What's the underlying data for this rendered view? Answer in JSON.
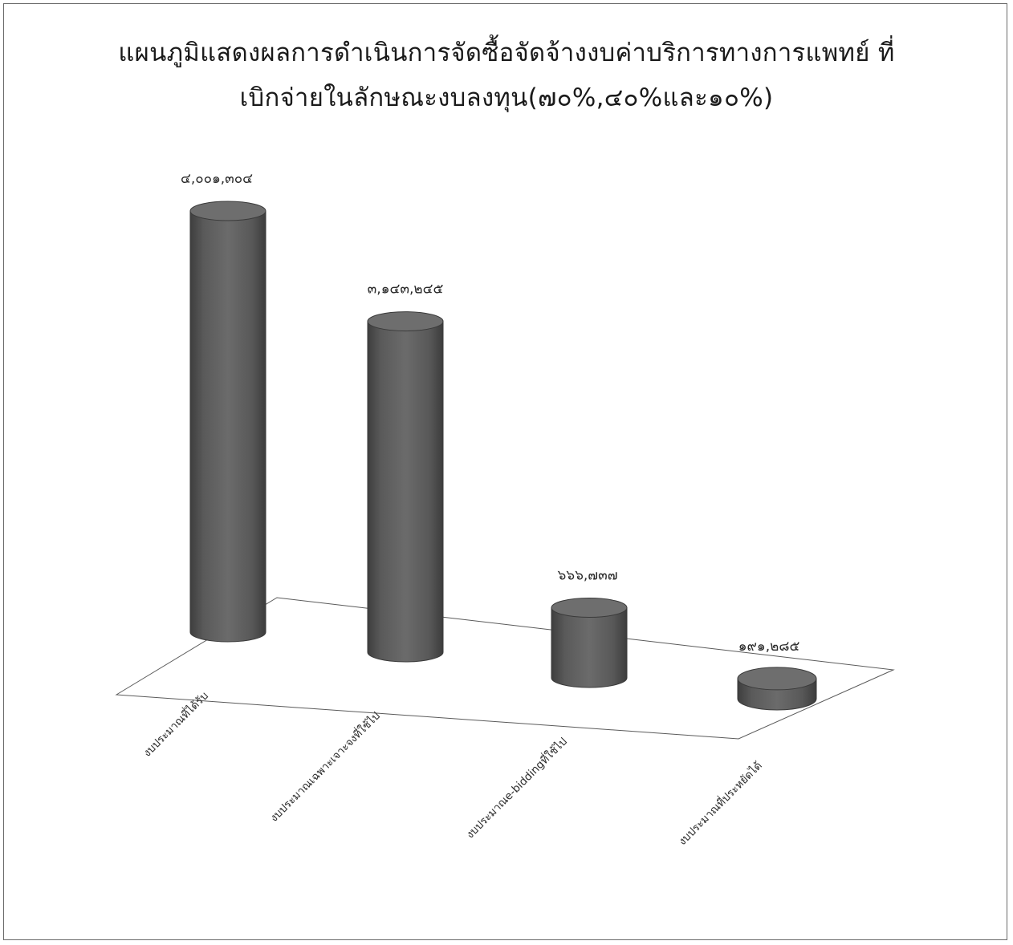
{
  "chart_data": {
    "type": "bar",
    "style": "3d-cylinder",
    "title_lines": [
      "แผนภูมิแสดงผลการดำเนินการจัดซื้อจัดจ้างงบค่าบริการทางการแพทย์ ที่",
      "เบิกจ่ายในลักษณะงบลงทุน(๗๐%,๔๐%และ๑๐%)"
    ],
    "categories": [
      "งบประมาณที่ได้รับ",
      "งบประมาณเฉพาะเจาะจงที่ใช้ไป",
      "งบประมาณe-biddingที่ใช้ไป",
      "งบประมาณที่ประหยัดได้"
    ],
    "values": [
      4001304,
      3143245,
      666737,
      191285
    ],
    "value_labels": [
      "๔,๐๐๑,๓๐๔",
      "๓,๑๔๓,๒๔๕",
      "๖๖๖,๗๓๗",
      "๑๙๑,๒๘๕"
    ],
    "xlabel": "",
    "ylabel": "",
    "grid": false,
    "legend": "none",
    "colors": {
      "bar": "#616161",
      "bar_top": "#6e6e6e",
      "floor": "#ffffff",
      "border": "#6a6a6a"
    }
  }
}
